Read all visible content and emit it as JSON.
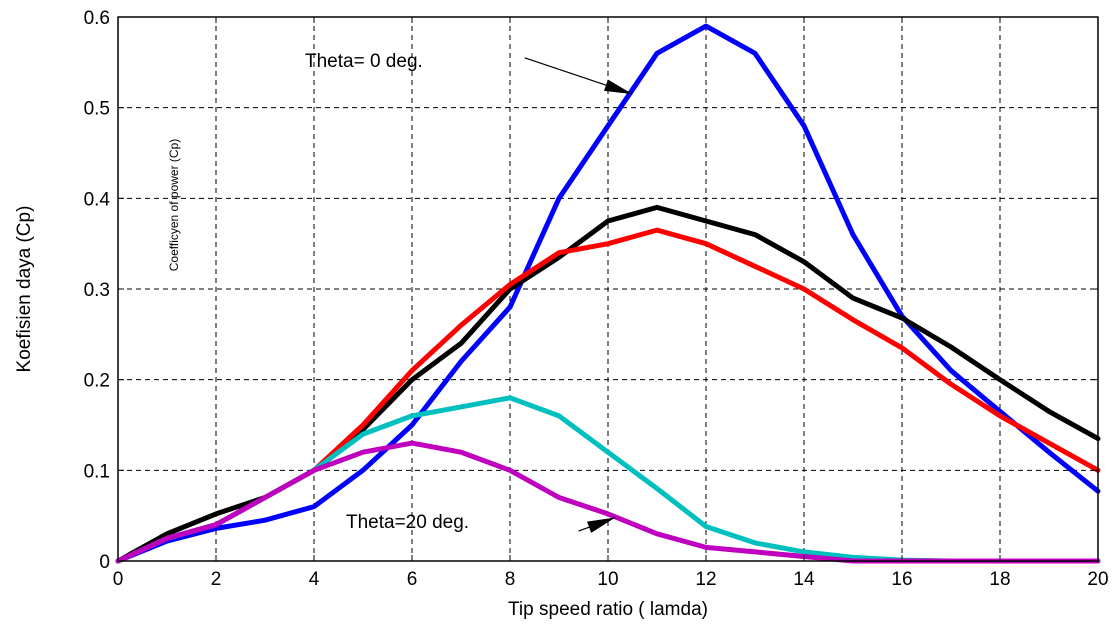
{
  "chart_data": {
    "type": "line",
    "title": "",
    "xlabel": "Tip speed ratio ( lamda)",
    "ylabel": "Koefisien daya (Cp)",
    "inner_note": "Coefficyen  of power (Cp)",
    "xlim": [
      0,
      20
    ],
    "ylim": [
      0,
      0.6
    ],
    "grid": true,
    "xticks": [
      0,
      2,
      4,
      6,
      8,
      10,
      12,
      14,
      16,
      18,
      20
    ],
    "xtick_labels": [
      "0",
      "2",
      "4",
      "6",
      "8",
      "10",
      "12",
      "14",
      "16",
      "18",
      "20"
    ],
    "yticks": [
      0,
      0.1,
      0.2,
      0.3,
      0.4,
      0.5,
      0.6
    ],
    "ytick_labels": [
      "0",
      "0.1",
      "0.2",
      "0.3",
      "0.4",
      "0.5",
      "0.6"
    ],
    "x": [
      0,
      1,
      2,
      3,
      4,
      5,
      6,
      7,
      8,
      9,
      10,
      11,
      12,
      13,
      14,
      15,
      16,
      17,
      18,
      19,
      20
    ],
    "series": [
      {
        "color": "#0000ff",
        "values": [
          0,
          0.022,
          0.036,
          0.045,
          0.06,
          0.1,
          0.15,
          0.22,
          0.28,
          0.4,
          0.48,
          0.56,
          0.59,
          0.56,
          0.48,
          0.36,
          0.27,
          0.21,
          0.165,
          0.12,
          0.077
        ]
      },
      {
        "color": "#000000",
        "values": [
          0,
          0.03,
          0.052,
          0.07,
          0.1,
          0.145,
          0.2,
          0.24,
          0.3,
          0.335,
          0.375,
          0.39,
          0.375,
          0.36,
          0.33,
          0.29,
          0.268,
          0.236,
          0.2,
          0.165,
          0.135
        ]
      },
      {
        "color": "#ff0000",
        "values": [
          0,
          0.025,
          0.04,
          0.07,
          0.1,
          0.15,
          0.21,
          0.26,
          0.305,
          0.34,
          0.35,
          0.365,
          0.35,
          0.325,
          0.3,
          0.266,
          0.235,
          0.195,
          0.16,
          0.13,
          0.1
        ]
      },
      {
        "color": "#00bfbf",
        "values": [
          0,
          0.025,
          0.04,
          0.07,
          0.1,
          0.14,
          0.16,
          0.17,
          0.18,
          0.16,
          0.12,
          0.08,
          0.038,
          0.02,
          0.01,
          0.004,
          0.001,
          0,
          0,
          0,
          0
        ]
      },
      {
        "color": "#bf00bf",
        "values": [
          0,
          0.025,
          0.04,
          0.07,
          0.1,
          0.12,
          0.13,
          0.12,
          0.1,
          0.07,
          0.052,
          0.03,
          0.015,
          0.01,
          0.005,
          0,
          0,
          0,
          0,
          0,
          0
        ]
      }
    ],
    "annotations": [
      {
        "text": "Theta= 0 deg.",
        "arrow_from": [
          8.3,
          0.555
        ],
        "arrow_to": [
          10.5,
          0.515
        ]
      },
      {
        "text": "Theta=20 deg.",
        "arrow_from": [
          9.4,
          0.033
        ],
        "arrow_to": [
          10.15,
          0.048
        ]
      }
    ]
  }
}
